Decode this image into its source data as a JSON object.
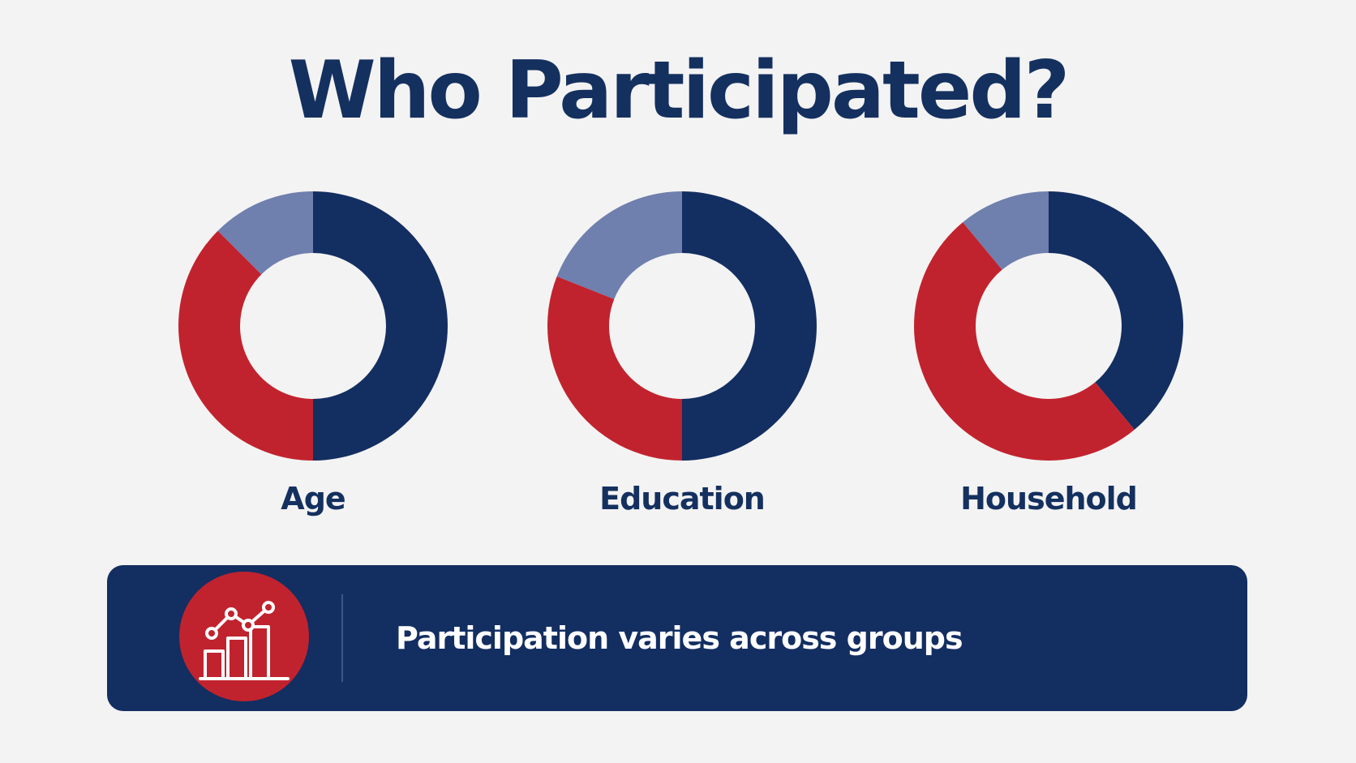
{
  "title": "Who Participated?",
  "colors": {
    "background": "#f3f3f3",
    "navy": "#132e61",
    "red": "#c1232e",
    "light_blue": "#6f7fae",
    "text": "#14305f"
  },
  "chart_data": [
    {
      "type": "pie",
      "variant": "donut",
      "title": "Age",
      "slices": [
        {
          "color": "navy",
          "value": 50
        },
        {
          "color": "red",
          "value": 37.5
        },
        {
          "color": "light_blue",
          "value": 12.5
        }
      ]
    },
    {
      "type": "pie",
      "variant": "donut",
      "title": "Education",
      "slices": [
        {
          "color": "navy",
          "value": 50
        },
        {
          "color": "red",
          "value": 31
        },
        {
          "color": "light_blue",
          "value": 19
        }
      ]
    },
    {
      "type": "pie",
      "variant": "donut",
      "title": "Household",
      "slices": [
        {
          "color": "navy",
          "value": 39
        },
        {
          "color": "red",
          "value": 50
        },
        {
          "color": "light_blue",
          "value": 11
        }
      ]
    }
  ],
  "banner": {
    "icon": "bar-and-line-chart-icon",
    "text": "Participation varies across groups"
  }
}
